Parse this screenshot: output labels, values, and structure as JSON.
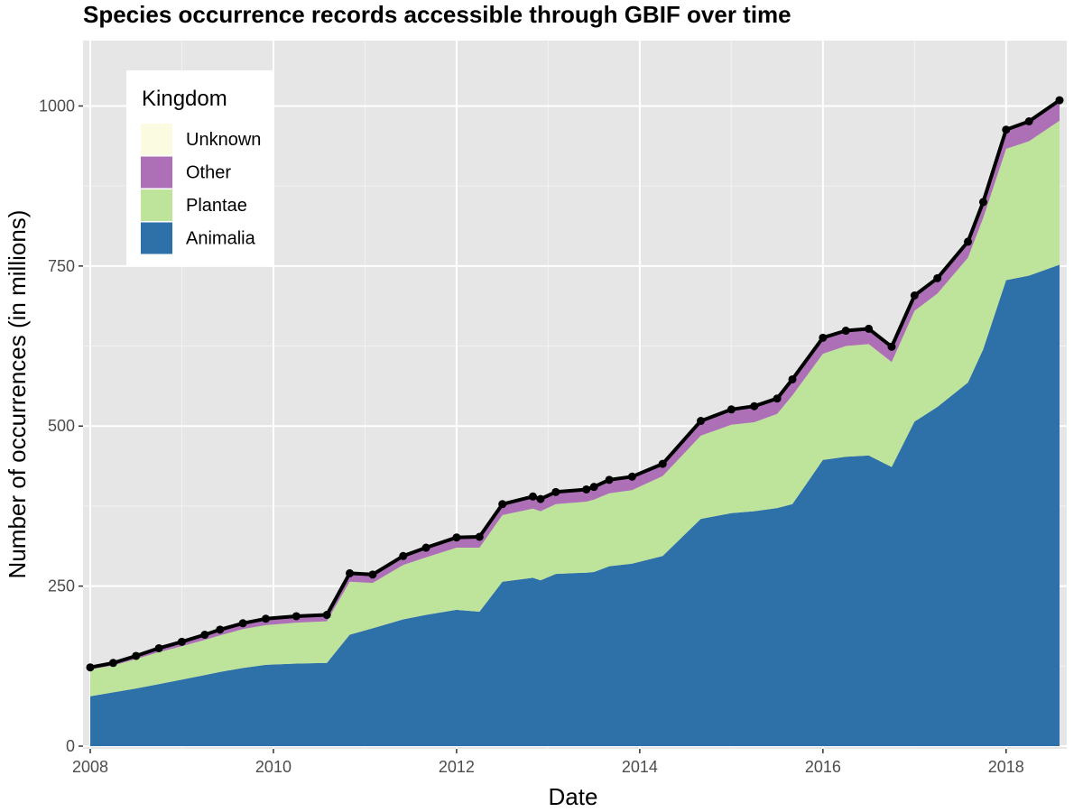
{
  "chart_data": {
    "type": "area",
    "stacked": true,
    "title": "Species occurrence records accessible through GBIF over time",
    "xlabel": "Date",
    "ylabel": "Number of occurrences (in millions)",
    "xlim": [
      "2008-01-01",
      "2018-08-01"
    ],
    "ylim": [
      0,
      1050
    ],
    "x_ticks": [
      "2008",
      "2010",
      "2012",
      "2014",
      "2016",
      "2018"
    ],
    "y_ticks": [
      "0",
      "250",
      "500",
      "750",
      "1000"
    ],
    "grid": true,
    "legend": {
      "title": "Kingdom",
      "position": "top-left",
      "entries": [
        "Unknown",
        "Other",
        "Plantae",
        "Animalia"
      ]
    },
    "colors": {
      "Animalia": "#2e70a8",
      "Plantae": "#bee39b",
      "Other": "#ad70b7",
      "Unknown": "#fbfbe2",
      "total_line": "#000000",
      "panel_bg": "#e6e6e6",
      "grid": "#ffffff"
    },
    "x": [
      "2008-01",
      "2008-04",
      "2008-07",
      "2008-10",
      "2009-01",
      "2009-04",
      "2009-06",
      "2009-09",
      "2009-12",
      "2010-04",
      "2010-08",
      "2010-11",
      "2011-02",
      "2011-06",
      "2011-09",
      "2012-01",
      "2012-04",
      "2012-07",
      "2012-11",
      "2012-12",
      "2013-02",
      "2013-06",
      "2013-07",
      "2013-09",
      "2013-12",
      "2014-04",
      "2014-09",
      "2015-01",
      "2015-04",
      "2015-07",
      "2015-09",
      "2016-01",
      "2016-04",
      "2016-07",
      "2016-10",
      "2017-01",
      "2017-04",
      "2017-08",
      "2017-10",
      "2018-01",
      "2018-04",
      "2018-08"
    ],
    "series": [
      {
        "name": "Animalia",
        "values": [
          78,
          84,
          90,
          97,
          104,
          111,
          116,
          122,
          127,
          129,
          130,
          174,
          184,
          198,
          205,
          213,
          210,
          257,
          263,
          259,
          269,
          271,
          272,
          281,
          285,
          297,
          355,
          364,
          367,
          372,
          378,
          447,
          452,
          454,
          436,
          507,
          530,
          568,
          620,
          728,
          735,
          752
        ]
      },
      {
        "name": "Plantae",
        "values": [
          42,
          42,
          46,
          50,
          52,
          55,
          57,
          61,
          62,
          64,
          65,
          83,
          71,
          85,
          90,
          97,
          100,
          104,
          108,
          108,
          109,
          111,
          113,
          114,
          115,
          125,
          130,
          138,
          139,
          147,
          170,
          166,
          173,
          174,
          164,
          173,
          177,
          195,
          205,
          205,
          210,
          225
        ]
      },
      {
        "name": "Other",
        "values": [
          3,
          4,
          5,
          6,
          7,
          8,
          9,
          9,
          10,
          10,
          10,
          13,
          13,
          14,
          15,
          16,
          17,
          17,
          19,
          19,
          19,
          19,
          20,
          21,
          21,
          19,
          23,
          24,
          25,
          24,
          25,
          25,
          24,
          24,
          24,
          24,
          24,
          25,
          25,
          30,
          31,
          32
        ]
      },
      {
        "name": "Unknown",
        "values": [
          0,
          0,
          0,
          0,
          0,
          0,
          0,
          0,
          0,
          0,
          0,
          0,
          0,
          0,
          0,
          0,
          0,
          0,
          0,
          0,
          0,
          0,
          0,
          0,
          0,
          0,
          0,
          0,
          0,
          0,
          0,
          0,
          0,
          0,
          0,
          0,
          0,
          0,
          0,
          0,
          0,
          0
        ]
      }
    ],
    "total": [
      123,
      130,
      141,
      153,
      163,
      174,
      182,
      192,
      199,
      203,
      205,
      270,
      268,
      297,
      310,
      326,
      327,
      378,
      390,
      386,
      397,
      401,
      405,
      416,
      421,
      441,
      508,
      526,
      531,
      543,
      573,
      638,
      649,
      652,
      624,
      704,
      731,
      788,
      850,
      963,
      976,
      1009
    ]
  }
}
